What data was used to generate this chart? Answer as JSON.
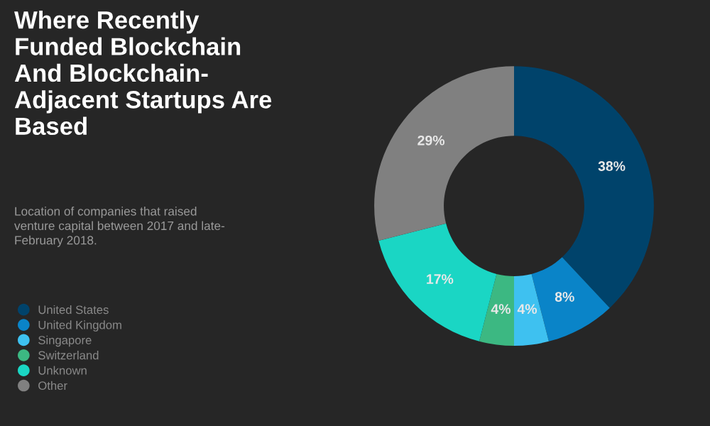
{
  "chart_data": {
    "type": "donut",
    "title": "Where Recently\nFunded Blockchain\nAnd Blockchain-\nAdjacent Startups Are\nBased",
    "subtitle": "Location of companies that raised\nventure capital between 2017 and late-\nFebruary 2018.",
    "categories": [
      "United States",
      "United Kingdom",
      "Singapore",
      "Switzerland",
      "Unknown",
      "Other"
    ],
    "values": [
      38,
      8,
      4,
      4,
      17,
      29
    ],
    "value_labels": [
      "38%",
      "8%",
      "4%",
      "4%",
      "17%",
      "29%"
    ],
    "colors": [
      "#00436b",
      "#0a84c8",
      "#3ec1f0",
      "#3cb882",
      "#1ad6c4",
      "#808080"
    ],
    "legend": "bottom left"
  }
}
